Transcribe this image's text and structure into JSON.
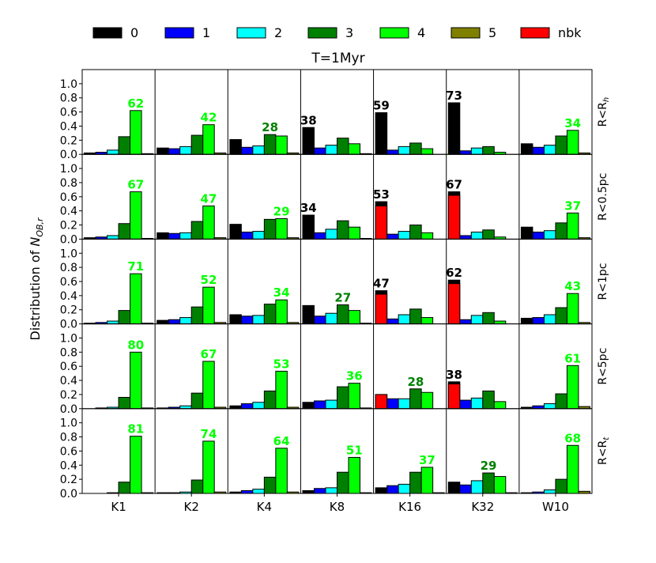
{
  "chart_data": {
    "type": "bar",
    "title": "T=1Myr",
    "ylabel": "Distribution of N_OB,r",
    "ylim": [
      0,
      1.2
    ],
    "yticks": [
      0.0,
      0.2,
      0.4,
      0.6,
      0.8,
      1.0
    ],
    "ytick_labels": [
      "0.0",
      "0.2",
      "0.4",
      "0.6",
      "0.8",
      "1.0"
    ],
    "categories": [
      "K1",
      "K2",
      "K4",
      "K8",
      "K16",
      "K32",
      "W10"
    ],
    "legend": [
      {
        "label": "0",
        "color": "#000000"
      },
      {
        "label": "1",
        "color": "#0000ff"
      },
      {
        "label": "2",
        "color": "#00ffff"
      },
      {
        "label": "3",
        "color": "#008000"
      },
      {
        "label": "4",
        "color": "#00ff00"
      },
      {
        "label": "5",
        "color": "#808000"
      },
      {
        "label": "nbk",
        "color": "#ff0000"
      }
    ],
    "rows": [
      {
        "label": "R<R_h",
        "label_main": "R<R",
        "label_sub": "h",
        "groups": [
          {
            "v": [
              0.02,
              0.03,
              0.06,
              0.25,
              0.62,
              0.01
            ],
            "nbk": null,
            "ann": {
              "text": "62",
              "bar": 4
            }
          },
          {
            "v": [
              0.09,
              0.08,
              0.11,
              0.27,
              0.42,
              0.02
            ],
            "nbk": null,
            "ann": {
              "text": "42",
              "bar": 4
            }
          },
          {
            "v": [
              0.21,
              0.1,
              0.12,
              0.28,
              0.26,
              0.02
            ],
            "nbk": null,
            "ann": {
              "text": "28",
              "bar": 3
            }
          },
          {
            "v": [
              0.38,
              0.09,
              0.13,
              0.23,
              0.15,
              0.01
            ],
            "nbk": null,
            "ann": {
              "text": "38",
              "bar": 0
            }
          },
          {
            "v": [
              0.59,
              0.06,
              0.11,
              0.16,
              0.08,
              0.0
            ],
            "nbk": null,
            "ann": {
              "text": "59",
              "bar": 0
            }
          },
          {
            "v": [
              0.73,
              0.05,
              0.09,
              0.11,
              0.03,
              0.0
            ],
            "nbk": null,
            "ann": {
              "text": "73",
              "bar": 0
            }
          },
          {
            "v": [
              0.15,
              0.1,
              0.13,
              0.26,
              0.34,
              0.02
            ],
            "nbk": null,
            "ann": {
              "text": "34",
              "bar": 4
            }
          }
        ]
      },
      {
        "label": "R<0.5pc",
        "label_main": "R<0.5pc",
        "label_sub": "",
        "groups": [
          {
            "v": [
              0.02,
              0.03,
              0.05,
              0.22,
              0.67,
              0.01
            ],
            "nbk": null,
            "ann": {
              "text": "67",
              "bar": 4
            }
          },
          {
            "v": [
              0.09,
              0.08,
              0.09,
              0.25,
              0.47,
              0.02
            ],
            "nbk": null,
            "ann": {
              "text": "47",
              "bar": 4
            }
          },
          {
            "v": [
              0.21,
              0.1,
              0.11,
              0.28,
              0.29,
              0.02
            ],
            "nbk": null,
            "ann": {
              "text": "29",
              "bar": 4
            }
          },
          {
            "v": [
              0.34,
              0.09,
              0.14,
              0.26,
              0.17,
              0.01
            ],
            "nbk": null,
            "ann": {
              "text": "34",
              "bar": 0
            }
          },
          {
            "v": [
              0.53,
              0.07,
              0.11,
              0.2,
              0.09,
              0.0
            ],
            "nbk": 0.47,
            "ann": {
              "text": "53",
              "bar": 0
            }
          },
          {
            "v": [
              0.67,
              0.05,
              0.1,
              0.13,
              0.03,
              0.0
            ],
            "nbk": 0.62,
            "ann": {
              "text": "67",
              "bar": 0
            }
          },
          {
            "v": [
              0.17,
              0.1,
              0.12,
              0.23,
              0.37,
              0.02
            ],
            "nbk": null,
            "ann": {
              "text": "37",
              "bar": 4
            }
          }
        ]
      },
      {
        "label": "R<1pc",
        "label_main": "R<1pc",
        "label_sub": "",
        "groups": [
          {
            "v": [
              0.01,
              0.02,
              0.04,
              0.19,
              0.71,
              0.01
            ],
            "nbk": null,
            "ann": {
              "text": "71",
              "bar": 4
            }
          },
          {
            "v": [
              0.05,
              0.06,
              0.09,
              0.24,
              0.52,
              0.02
            ],
            "nbk": null,
            "ann": {
              "text": "52",
              "bar": 4
            }
          },
          {
            "v": [
              0.13,
              0.11,
              0.12,
              0.28,
              0.34,
              0.02
            ],
            "nbk": null,
            "ann": {
              "text": "34",
              "bar": 4
            }
          },
          {
            "v": [
              0.26,
              0.11,
              0.15,
              0.27,
              0.19,
              0.01
            ],
            "nbk": null,
            "ann": {
              "text": "27",
              "bar": 3
            }
          },
          {
            "v": [
              0.47,
              0.07,
              0.13,
              0.21,
              0.09,
              0.0
            ],
            "nbk": 0.42,
            "ann": {
              "text": "47",
              "bar": 0
            }
          },
          {
            "v": [
              0.62,
              0.06,
              0.12,
              0.16,
              0.04,
              0.0
            ],
            "nbk": 0.57,
            "ann": {
              "text": "62",
              "bar": 0
            }
          },
          {
            "v": [
              0.08,
              0.09,
              0.13,
              0.23,
              0.43,
              0.02
            ],
            "nbk": null,
            "ann": {
              "text": "43",
              "bar": 4
            }
          }
        ]
      },
      {
        "label": "R<5pc",
        "label_main": "R<5pc",
        "label_sub": "",
        "groups": [
          {
            "v": [
              0.0,
              0.01,
              0.02,
              0.16,
              0.8,
              0.01
            ],
            "nbk": null,
            "ann": {
              "text": "80",
              "bar": 4
            }
          },
          {
            "v": [
              0.01,
              0.02,
              0.04,
              0.22,
              0.67,
              0.02
            ],
            "nbk": null,
            "ann": {
              "text": "67",
              "bar": 4
            }
          },
          {
            "v": [
              0.04,
              0.07,
              0.09,
              0.25,
              0.53,
              0.02
            ],
            "nbk": null,
            "ann": {
              "text": "53",
              "bar": 4
            }
          },
          {
            "v": [
              0.09,
              0.11,
              0.12,
              0.31,
              0.36,
              0.01
            ],
            "nbk": null,
            "ann": {
              "text": "36",
              "bar": 4
            }
          },
          {
            "v": [
              0.2,
              0.14,
              0.14,
              0.28,
              0.23,
              0.0
            ],
            "nbk": 0.2,
            "ann": {
              "text": "28",
              "bar": 3
            }
          },
          {
            "v": [
              0.38,
              0.12,
              0.15,
              0.25,
              0.1,
              0.0
            ],
            "nbk": 0.35,
            "ann": {
              "text": "38",
              "bar": 0
            }
          },
          {
            "v": [
              0.02,
              0.04,
              0.07,
              0.21,
              0.61,
              0.03
            ],
            "nbk": null,
            "ann": {
              "text": "61",
              "bar": 4
            }
          }
        ]
      },
      {
        "label": "R<R_t",
        "label_main": "R<R",
        "label_sub": "t",
        "groups": [
          {
            "v": [
              0.0,
              0.0,
              0.01,
              0.16,
              0.81,
              0.01
            ],
            "nbk": null,
            "ann": {
              "text": "81",
              "bar": 4
            }
          },
          {
            "v": [
              0.01,
              0.01,
              0.02,
              0.19,
              0.74,
              0.02
            ],
            "nbk": null,
            "ann": {
              "text": "74",
              "bar": 4
            }
          },
          {
            "v": [
              0.02,
              0.04,
              0.06,
              0.23,
              0.64,
              0.02
            ],
            "nbk": null,
            "ann": {
              "text": "64",
              "bar": 4
            }
          },
          {
            "v": [
              0.04,
              0.07,
              0.08,
              0.3,
              0.51,
              0.01
            ],
            "nbk": null,
            "ann": {
              "text": "51",
              "bar": 4
            }
          },
          {
            "v": [
              0.08,
              0.11,
              0.13,
              0.3,
              0.37,
              0.01
            ],
            "nbk": null,
            "ann": {
              "text": "37",
              "bar": 4
            }
          },
          {
            "v": [
              0.16,
              0.12,
              0.18,
              0.29,
              0.24,
              0.01
            ],
            "nbk": null,
            "ann": {
              "text": "29",
              "bar": 3
            }
          },
          {
            "v": [
              0.01,
              0.02,
              0.05,
              0.2,
              0.68,
              0.03
            ],
            "nbk": null,
            "ann": {
              "text": "68",
              "bar": 4
            }
          }
        ]
      }
    ]
  }
}
